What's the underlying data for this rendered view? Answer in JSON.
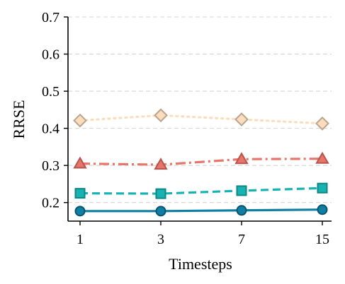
{
  "chart_data": {
    "type": "line",
    "xlabel": "Timesteps",
    "ylabel": "RRSE",
    "x_categories": [
      "1",
      "3",
      "7",
      "15"
    ],
    "ylim": [
      0.15,
      0.7
    ],
    "yticks": [
      0.2,
      0.3,
      0.4,
      0.5,
      0.6,
      0.7
    ],
    "ytick_labels": [
      "0.2",
      "0.3",
      "0.4",
      "0.5",
      "0.6",
      "0.7"
    ],
    "grid": "horizontal dashed",
    "series": [
      {
        "values": [
          0.421,
          0.435,
          0.424,
          0.413
        ],
        "line_style": "dotted",
        "marker": "diamond",
        "line_color": "#fddcbc",
        "marker_fill": "#fddcbc",
        "marker_edge": "#b8a48f"
      },
      {
        "values": [
          0.305,
          0.302,
          0.317,
          0.318
        ],
        "line_style": "dashdot",
        "marker": "triangle",
        "line_color": "#e8756a",
        "marker_fill": "#e8756a",
        "marker_edge": "#b4554e"
      },
      {
        "values": [
          0.225,
          0.224,
          0.232,
          0.239
        ],
        "line_style": "dashed",
        "marker": "square",
        "line_color": "#17b3b3",
        "marker_fill": "#17b3b3",
        "marker_edge": "#0f8586"
      },
      {
        "values": [
          0.177,
          0.177,
          0.179,
          0.181
        ],
        "line_style": "solid",
        "marker": "circle",
        "line_color": "#0f7fa4",
        "marker_fill": "#0f7fa4",
        "marker_edge": "#0a536e"
      }
    ]
  }
}
